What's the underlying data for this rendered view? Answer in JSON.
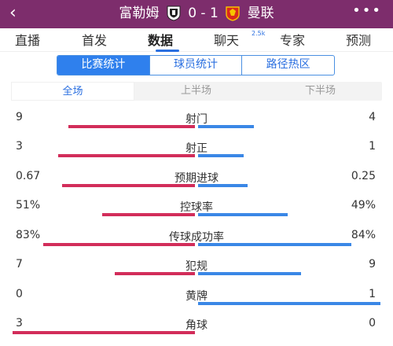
{
  "header": {
    "back_icon": "back-arrow-icon",
    "home_team": "富勒姆",
    "score": "0 - 1",
    "away_team": "曼联",
    "home_crest": "fulham-crest-icon",
    "away_crest": "man-utd-crest-icon",
    "more_icon": "more-dots-icon",
    "background_color": "#7d2d6c"
  },
  "main_tabs": [
    {
      "label": "直播"
    },
    {
      "label": "首发"
    },
    {
      "label": "数据"
    },
    {
      "label": "聊天",
      "badge": "2.5k"
    },
    {
      "label": "专家"
    },
    {
      "label": "预测"
    }
  ],
  "sub_tabs": [
    {
      "label": "比赛统计"
    },
    {
      "label": "球员统计"
    },
    {
      "label": "路径热区"
    }
  ],
  "period_tabs": [
    {
      "label": "全场"
    },
    {
      "label": "上半场"
    },
    {
      "label": "下半场"
    }
  ],
  "colors": {
    "home_bar": "#d22d5a",
    "away_bar": "#3a87e6",
    "accent": "#2f80ed"
  },
  "stats": [
    {
      "name": "射门",
      "left": "9",
      "right": "4",
      "left_share": 0.692,
      "right_share": 0.308
    },
    {
      "name": "射正",
      "left": "3",
      "right": "1",
      "left_share": 0.75,
      "right_share": 0.25
    },
    {
      "name": "预期进球",
      "left": "0.67",
      "right": "0.25",
      "left_share": 0.728,
      "right_share": 0.272
    },
    {
      "name": "控球率",
      "left": "51%",
      "right": "49%",
      "left_share": 0.51,
      "right_share": 0.49
    },
    {
      "name": "传球成功率",
      "left": "83%",
      "right": "84%",
      "left_share": 0.83,
      "right_share": 0.84
    },
    {
      "name": "犯规",
      "left": "7",
      "right": "9",
      "left_share": 0.4375,
      "right_share": 0.5625
    },
    {
      "name": "黄牌",
      "left": "0",
      "right": "1",
      "left_share": 0.0,
      "right_share": 1.0
    },
    {
      "name": "角球",
      "left": "3",
      "right": "0",
      "left_share": 1.0,
      "right_share": 0.0
    }
  ]
}
